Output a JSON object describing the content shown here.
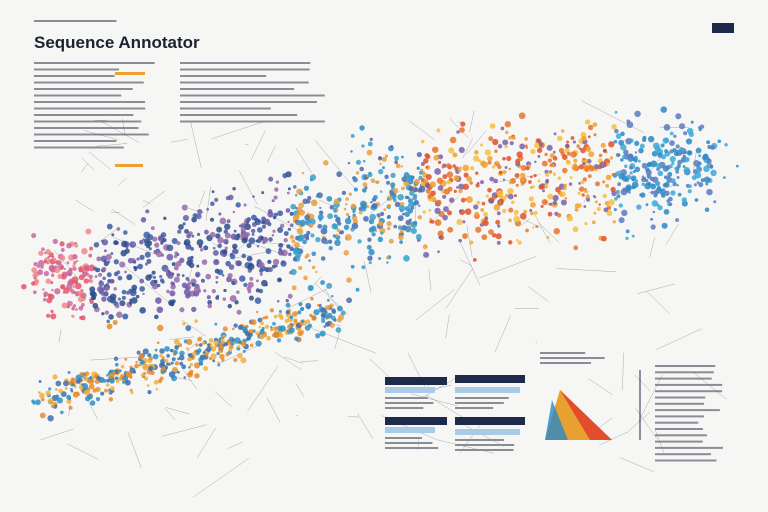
{
  "header": {
    "title": "Sequence Annotator"
  }
}
